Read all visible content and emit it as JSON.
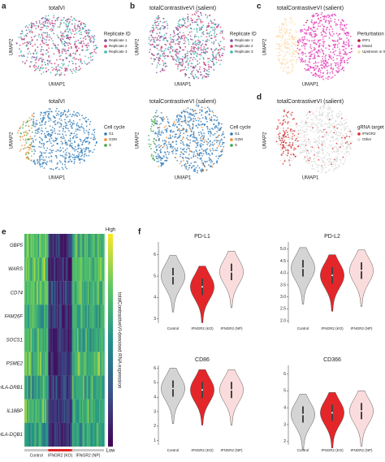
{
  "letters": [
    "a",
    "b",
    "c",
    "d",
    "e",
    "f"
  ],
  "umaps": [
    {
      "title": "totalVI",
      "legend_title": "Replicate ID",
      "legend": [
        {
          "label": "Replicate 1",
          "color": "#7b4fa0"
        },
        {
          "label": "Replicate 2",
          "color": "#d63a6a"
        },
        {
          "label": "Replicate 3",
          "color": "#3fb8b0"
        }
      ],
      "x_label": "UMAP1",
      "y_label": "UMAP2"
    },
    {
      "title": "totalContrastiveVI (salient)",
      "legend_title": "Replicate ID",
      "legend": [
        {
          "label": "Replicate 1",
          "color": "#7b4fa0"
        },
        {
          "label": "Replicate 2",
          "color": "#d63a6a"
        },
        {
          "label": "Replicate 3",
          "color": "#3fb8b0"
        }
      ],
      "x_label": "UMAP1",
      "y_label": "UMAP2"
    },
    {
      "title": "totalContrastiveVI (salient)",
      "legend_title": "Perturbation cluster",
      "legend": [
        {
          "label": "IRF1",
          "color": "#b0182a"
        },
        {
          "label": "Mixed",
          "color": "#e23bb8"
        },
        {
          "label": "Upstream or IFN-γ",
          "color": "#fbd9a6"
        }
      ],
      "x_label": "UMAP1",
      "y_label": "UMAP2"
    },
    {
      "title": "totalVI",
      "legend_title": "Cell cycle",
      "legend": [
        {
          "label": "G1",
          "color": "#2f7ab8"
        },
        {
          "label": "G2M",
          "color": "#f08a2c"
        },
        {
          "label": "S",
          "color": "#3aa64a"
        }
      ],
      "x_label": "UMAP1",
      "y_label": "UMAP2"
    },
    {
      "title": "totalContrastiveVI (salient)",
      "legend_title": "Cell cycle",
      "legend": [
        {
          "label": "G1",
          "color": "#2f7ab8"
        },
        {
          "label": "G2M",
          "color": "#f08a2c"
        },
        {
          "label": "S",
          "color": "#3aa64a"
        }
      ],
      "x_label": "UMAP1",
      "y_label": "UMAP2"
    },
    {
      "title": "totalContrastiveVI (salient)",
      "legend_title": "gRNA target",
      "legend": [
        {
          "label": "IFNGR2",
          "color": "#d62a2a"
        },
        {
          "label": "Other",
          "color": "#d9d9d9"
        }
      ],
      "x_label": "UMAP1",
      "y_label": "UMAP2"
    }
  ],
  "heatmap": {
    "genes": [
      "GBP5",
      "WARS",
      "CD74",
      "FAM26F",
      "SOCS1",
      "PSME2",
      "HLA-DRB1",
      "IL18BP",
      "HLA-DQB1"
    ],
    "groups": [
      "Control",
      "IFNGR2 (KO)",
      "IFNGR2 (NP)"
    ],
    "group_colors": [
      "#c8c8c8",
      "#e3262a",
      "#c8c8c8"
    ],
    "levels": [
      [
        0.7,
        0.15,
        0.65
      ],
      [
        0.75,
        0.1,
        0.7
      ],
      [
        0.7,
        0.2,
        0.65
      ],
      [
        0.6,
        0.15,
        0.6
      ],
      [
        0.65,
        0.1,
        0.6
      ],
      [
        0.7,
        0.15,
        0.65
      ],
      [
        0.6,
        0.2,
        0.6
      ],
      [
        0.65,
        0.15,
        0.6
      ],
      [
        0.55,
        0.15,
        0.55
      ]
    ],
    "colorbar_high": "High",
    "colorbar_low": "Low",
    "colorbar_label": "totalContrastiveVI-denoised RNA expression"
  },
  "violins": {
    "groups": [
      "Control",
      "IFNGR2 (KO)",
      "IFNGR2 (NP)"
    ],
    "colors": [
      "#d4d4d4",
      "#e3262a",
      "#fbdcdc"
    ],
    "panels": [
      {
        "title": "PD-L1",
        "medians": [
          5.0,
          4.5,
          5.2
        ],
        "ylim": [
          2.8,
          6.6
        ],
        "yticks": [
          3,
          4,
          5,
          6
        ]
      },
      {
        "title": "PD-L2",
        "medians": [
          4.2,
          3.9,
          4.1
        ],
        "ylim": [
          1.9,
          5.3
        ],
        "yticks": [
          {
            "value": 2,
            "label": "2.0"
          },
          2.5,
          {
            "value": 3,
            "label": "3.0"
          },
          3.5,
          {
            "value": 4,
            "label": "4.0"
          },
          4.5,
          {
            "value": 5,
            "label": "5.0"
          }
        ]
      },
      {
        "title": "CD86",
        "medians": [
          4.6,
          4.5,
          4.5
        ],
        "ylim": [
          0.7,
          6.2
        ],
        "yticks": [
          1,
          2,
          3,
          4,
          5,
          6
        ]
      },
      {
        "title": "CD366",
        "medians": [
          3.6,
          3.7,
          3.8
        ],
        "ylim": [
          1.8,
          6.5
        ],
        "yticks": [
          2,
          3,
          4,
          5,
          6
        ]
      }
    ]
  }
}
